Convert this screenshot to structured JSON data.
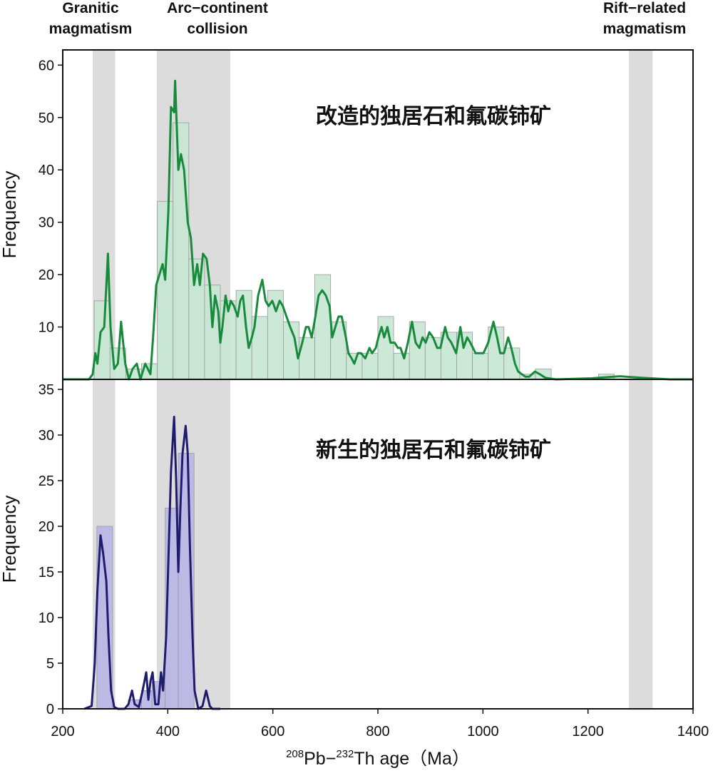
{
  "chart_data": [
    {
      "type": "histogram",
      "annotation": "改造的独居石和氟碳铈矿",
      "y_label": "Frequency",
      "xlim": [
        200,
        1400
      ],
      "ylim": [
        0,
        62.9
      ],
      "yticks": [
        10,
        20,
        30,
        40,
        50,
        60
      ],
      "bands": [
        {
          "label": [
            "Granitic",
            "magmatism"
          ],
          "range": [
            257,
            300
          ]
        },
        {
          "label": [
            "Arc−continent",
            "collision"
          ],
          "range": [
            379,
            519
          ]
        },
        {
          "label": [
            "Rift−related",
            "magmatism"
          ],
          "range": [
            1278,
            1323
          ]
        }
      ],
      "band_color": "#dcdcdc",
      "color": "#c6e7d3",
      "bins": [
        260,
        290,
        320,
        350,
        380,
        410,
        440,
        470,
        500,
        530,
        560,
        590,
        620,
        650,
        680,
        710,
        740,
        770,
        800,
        830,
        860,
        890,
        920,
        950,
        980,
        1010,
        1040,
        1070,
        1100,
        1130,
        1160,
        1190,
        1220,
        1250
      ],
      "counts": [
        15,
        6,
        2,
        3,
        34,
        49,
        23,
        18,
        15,
        17,
        12,
        17,
        11,
        8,
        20,
        11,
        5,
        5,
        12,
        5,
        11,
        8,
        9,
        9,
        5,
        10,
        6,
        1,
        2,
        0,
        0,
        0,
        1
      ],
      "kde": {
        "color": "#178a3c",
        "x": [
          200,
          250,
          257,
          262,
          266,
          272,
          279,
          286,
          291,
          298,
          305,
          311,
          319,
          326,
          333,
          341,
          348,
          357,
          367,
          372,
          378,
          390,
          395,
          401,
          406,
          412,
          414,
          420,
          425,
          431,
          438,
          444,
          450,
          456,
          461,
          467,
          474,
          480,
          485,
          490,
          496,
          500,
          504,
          510,
          515,
          520,
          526,
          533,
          538,
          543,
          549,
          554,
          560,
          565,
          572,
          580,
          586,
          592,
          599,
          606,
          613,
          619,
          626,
          633,
          641,
          648,
          656,
          663,
          668,
          674,
          681,
          687,
          694,
          701,
          708,
          713,
          719,
          725,
          731,
          739,
          744,
          750,
          755,
          762,
          768,
          776,
          784,
          789,
          796,
          801,
          807,
          812,
          818,
          824,
          832,
          838,
          843,
          850,
          857,
          865,
          872,
          879,
          885,
          891,
          898,
          905,
          913,
          919,
          928,
          933,
          940,
          949,
          957,
          963,
          970,
          976,
          986,
          993,
          1001,
          1010,
          1020,
          1027,
          1033,
          1040,
          1048,
          1054,
          1061,
          1067,
          1074,
          1081,
          1088,
          1099,
          1108,
          1119,
          1139,
          1207,
          1261,
          1302,
          1356,
          1400
        ],
        "values": [
          0,
          0,
          1,
          5,
          3,
          9,
          10,
          24,
          10,
          2,
          3,
          11,
          3,
          0,
          2,
          3,
          0,
          3,
          1,
          8,
          18,
          22,
          19,
          32,
          52,
          51,
          57,
          40,
          43,
          40,
          30,
          27,
          18,
          22,
          18,
          24,
          23,
          18,
          10,
          16,
          13,
          7,
          10,
          16,
          13,
          15,
          14,
          12,
          15,
          16,
          10,
          6,
          8,
          10,
          16,
          19,
          15,
          14,
          15,
          13,
          15,
          14,
          12,
          10,
          8,
          4,
          7,
          10,
          10,
          8,
          12,
          16,
          17,
          16,
          14,
          8,
          10,
          12,
          12,
          8,
          5,
          4,
          3,
          5,
          5,
          4,
          6,
          5,
          6,
          8,
          10,
          8,
          10,
          7,
          7,
          6,
          6,
          4,
          7,
          11,
          7,
          6,
          8,
          7,
          9,
          8,
          6,
          6,
          10,
          8,
          7,
          5,
          10,
          6,
          8,
          7,
          5,
          5,
          5,
          7,
          11,
          8,
          5,
          5,
          8,
          6,
          3,
          1.5,
          1,
          0.5,
          0.5,
          1.5,
          1,
          0.3,
          0,
          0.2,
          0.6,
          0.3,
          0,
          0
        ]
      }
    },
    {
      "type": "histogram",
      "annotation": "新生的独居石和氟碳铈矿",
      "y_label": "Frequency",
      "x_label": [
        "208",
        "Pb−",
        "232",
        "Th age（Ma）"
      ],
      "xlim": [
        200,
        1400
      ],
      "xticks": [
        200,
        400,
        600,
        800,
        1000,
        1200,
        1400
      ],
      "ylim": [
        0,
        36.1
      ],
      "yticks": [
        0,
        5,
        10,
        15,
        20,
        25,
        30,
        35
      ],
      "color": "#b8b6e4",
      "bins": [
        265,
        295,
        325,
        350,
        370,
        395,
        420,
        450
      ],
      "counts": [
        20,
        0,
        1,
        2,
        3,
        22,
        28
      ],
      "kde": {
        "color": "#1f1b6e",
        "x": [
          241,
          255,
          261,
          266,
          272,
          277,
          283,
          287,
          292,
          298,
          305,
          318,
          325,
          332,
          337,
          345,
          352,
          359,
          363,
          367,
          371,
          376,
          382,
          387,
          391,
          397,
          402,
          406,
          412,
          416,
          420,
          424,
          428,
          434,
          438,
          442,
          447,
          451,
          458,
          466,
          473,
          480,
          485,
          500
        ],
        "values": [
          0,
          0.3,
          5,
          13,
          19,
          17,
          14,
          8,
          2,
          0.2,
          0,
          0,
          0.5,
          2,
          0.5,
          0.2,
          2,
          4,
          1,
          3,
          4,
          0.5,
          0.5,
          4,
          2,
          8,
          18,
          26,
          32,
          25,
          15,
          22,
          28,
          31,
          28,
          18,
          8,
          2,
          0,
          0.3,
          2,
          0.3,
          0,
          0
        ]
      }
    }
  ]
}
